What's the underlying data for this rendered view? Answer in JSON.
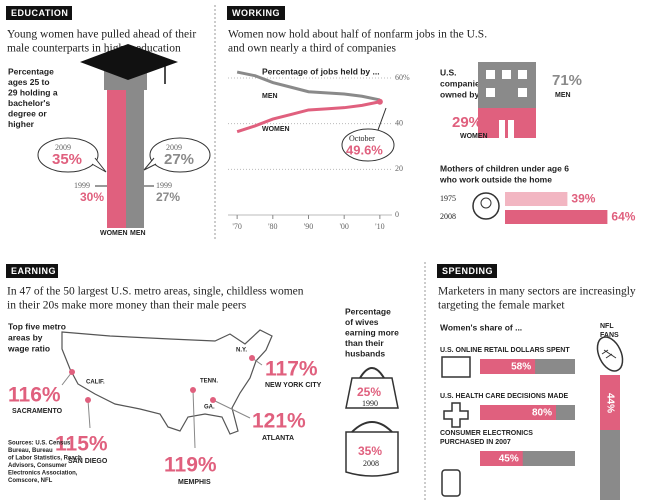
{
  "education": {
    "header": "EDUCATION",
    "subtitle": [
      "Young women have pulled ahead of their",
      "male counterparts in higher education"
    ],
    "label": [
      "Percentage",
      "ages 25 to",
      "29 holding a",
      "bachelor's",
      "degree or",
      "higher"
    ],
    "women": {
      "name": "WOMEN",
      "year_2009": "2009",
      "value_2009": "35%",
      "year_1999": "1999",
      "value_1999": "30%"
    },
    "men": {
      "name": "MEN",
      "year_2009": "2009",
      "value_2009": "27%",
      "year_1999": "1999",
      "value_1999": "27%"
    }
  },
  "working": {
    "header": "WORKING",
    "subtitle": [
      "Women now hold about half of nonfarm jobs in the U.S.",
      "and own nearly a third of companies"
    ],
    "jobs": {
      "title": "Percentage of jobs held by ...",
      "x": [
        1970,
        1975,
        1980,
        1985,
        1990,
        1995,
        2000,
        2005,
        2010
      ],
      "series": [
        {
          "name": "MEN",
          "color": "#8a8a8a",
          "values": [
            62.6,
            61,
            58,
            56,
            54,
            53.5,
            53,
            52,
            50.4
          ]
        },
        {
          "name": "WOMEN",
          "color": "#e0607e",
          "values": [
            36.5,
            39,
            42,
            44,
            46,
            46.5,
            47,
            48,
            49.6
          ]
        }
      ],
      "xlim": [
        1968,
        2012
      ],
      "ylim": [
        0,
        60
      ],
      "xticks": [
        {
          "value": 1970,
          "label": "'70"
        },
        {
          "value": 1980,
          "label": "'80"
        },
        {
          "value": 1990,
          "label": "'90"
        },
        {
          "value": 2000,
          "label": "'00"
        },
        {
          "value": 2010,
          "label": "'10"
        }
      ],
      "yticks": [
        0,
        20,
        40,
        {
          "value": 60,
          "label": "60%"
        }
      ],
      "callout": [
        "October",
        "49.6%"
      ]
    },
    "companies": {
      "label": [
        "U.S.",
        "companies",
        "owned by ..."
      ],
      "men_value": "71%",
      "men": "MEN",
      "women_value": "29%",
      "women": "WOMEN"
    },
    "mothers": {
      "title": [
        "Mothers of children under age 6",
        "who work outside the home"
      ],
      "rows": [
        {
          "label": "1975",
          "value": 39,
          "value_label": "39%",
          "color": "#f2b6c2"
        },
        {
          "label": "2008",
          "value": 64,
          "value_label": "64%",
          "color": "#e0607e"
        }
      ]
    }
  },
  "earning": {
    "header": "EARNING",
    "subtitle": [
      "In 47 of the 50 largest U.S. metro areas, single, childless women",
      "in their 20s make more money than their male peers"
    ],
    "label": [
      "Top five metro",
      "areas by",
      "wage ratio"
    ],
    "cities": [
      {
        "value": "116%",
        "name": "SACRAMENTO"
      },
      {
        "value": "115%",
        "name": "SAN DIEGO"
      },
      {
        "value": "119%",
        "name": "MEMPHIS"
      },
      {
        "value": "121%",
        "name": "ATLANTA"
      },
      {
        "value": "117%",
        "name": "NEW YORK CITY"
      }
    ],
    "states": [
      "CALIF.",
      "TENN.",
      "GA.",
      "N.Y."
    ],
    "sources": [
      "Sources: U.S. Census",
      "Bureau, Bureau",
      "of Labor Statistics, Reach",
      "Advisors, Consumer",
      "Electronics Association,",
      "Comscore, NFL"
    ],
    "wives": {
      "label": [
        "Percentage",
        "of wives",
        "earning more",
        "than their",
        "husbands"
      ],
      "items": [
        {
          "value": "25%",
          "year": "1990"
        },
        {
          "value": "35%",
          "year": "2008"
        }
      ]
    }
  },
  "spending": {
    "header": "SPENDING",
    "subtitle": [
      "Marketers in many sectors are increasingly",
      "targeting the female market"
    ],
    "label": "Women's share of ...",
    "rows": [
      {
        "label": [
          "U.S. ONLINE RETAIL DOLLARS SPENT"
        ],
        "value": 58,
        "value_label": "58%"
      },
      {
        "label": [
          "U.S. HEALTH CARE DECISIONS MADE"
        ],
        "value": 80,
        "value_label": "80%"
      },
      {
        "label": [
          "CONSUMER ELECTRONICS",
          "PURCHASED IN 2007"
        ],
        "value": 45,
        "value_label": "45%"
      }
    ],
    "nfl": {
      "label": [
        "NFL",
        "FANS"
      ],
      "value": 44,
      "value_label": "44%"
    }
  }
}
